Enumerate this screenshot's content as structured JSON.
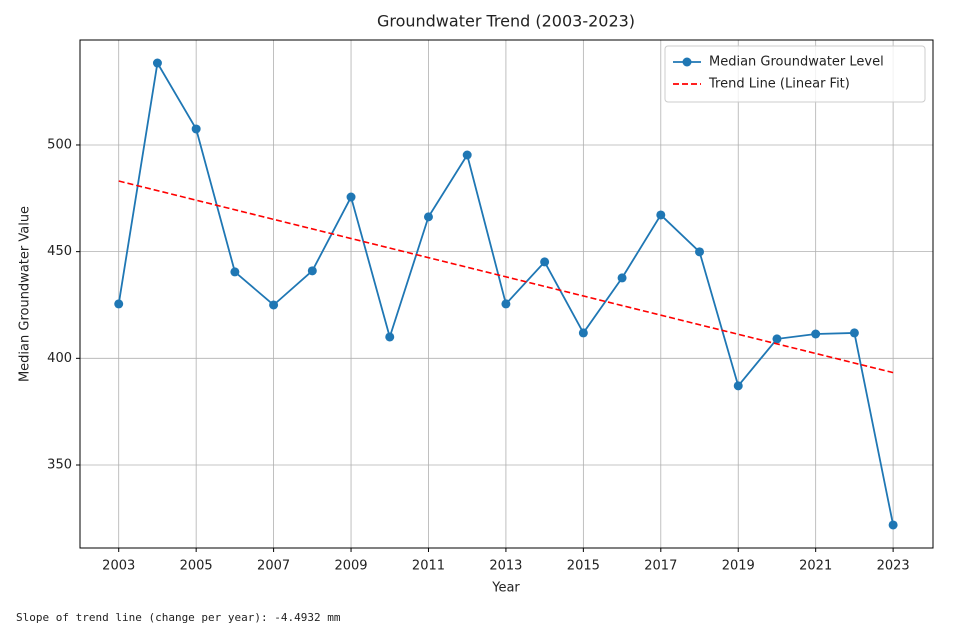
{
  "chart_data": {
    "type": "line",
    "title": "Groundwater Trend (2003-2023)",
    "xlabel": "Year",
    "ylabel": "Median Groundwater Value",
    "x": [
      2003,
      2004,
      2005,
      2006,
      2007,
      2008,
      2009,
      2010,
      2011,
      2012,
      2013,
      2014,
      2015,
      2016,
      2017,
      2018,
      2019,
      2020,
      2021,
      2022,
      2023
    ],
    "series": [
      {
        "name": "Median Groundwater Level",
        "color": "#1f77b4",
        "marker": "o",
        "values": [
          425.5,
          538.4,
          507.5,
          440.5,
          425,
          441,
          475.6,
          410,
          466.3,
          495.3,
          425.5,
          445.2,
          411.9,
          437.7,
          467.2,
          449.9,
          387.1,
          409.1,
          411.4,
          411.9,
          321.9
        ]
      },
      {
        "name": "Trend Line (Linear Fit)",
        "color": "#ff0000",
        "dashed": true,
        "x": [
          2003,
          2023
        ],
        "values": [
          483.1,
          393.3
        ]
      }
    ],
    "xlim": [
      2002,
      2024.03
    ],
    "xticks": [
      2003,
      2005,
      2007,
      2009,
      2011,
      2013,
      2015,
      2017,
      2019,
      2021,
      2023
    ],
    "ylim": [
      311.1,
      549.2
    ],
    "yticks": [
      350,
      400,
      450,
      500
    ],
    "grid": true,
    "legend": "upper right"
  },
  "output_text": "Slope of trend line (change per year): -4.4932 mm"
}
